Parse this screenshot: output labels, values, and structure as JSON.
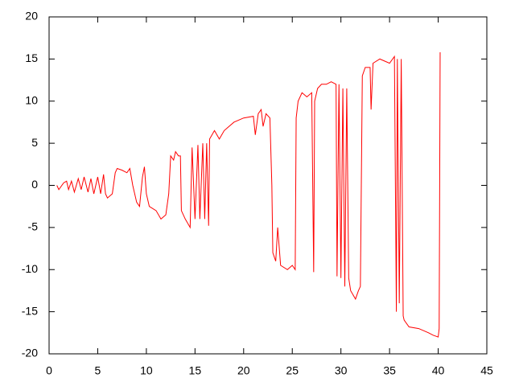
{
  "chart_data": {
    "type": "line",
    "color": "#ff0000",
    "xlim": [
      0,
      45
    ],
    "xticks": [
      0,
      5,
      10,
      15,
      20,
      25,
      30,
      35,
      40,
      45
    ],
    "ylim": [
      -20,
      20
    ],
    "yticks": [
      -20,
      -15,
      -10,
      -5,
      0,
      5,
      10,
      15,
      20
    ],
    "x": [
      0.8,
      1,
      1.5,
      1.8,
      2,
      2.3,
      2.6,
      3,
      3.3,
      3.6,
      4,
      4.3,
      4.6,
      5,
      5.3,
      5.6,
      5.8,
      6,
      6.5,
      6.8,
      7,
      7.5,
      8,
      8.3,
      8.6,
      9,
      9.3,
      9.6,
      9.8,
      10,
      10.3,
      11,
      11.5,
      12,
      12.3,
      12.5,
      12.8,
      13,
      13.3,
      13.5,
      13.6,
      14,
      14.5,
      14.7,
      15,
      15.3,
      15.5,
      15.8,
      16,
      16.2,
      16.4,
      16.5,
      17,
      17.5,
      18,
      19,
      20,
      21,
      21.2,
      21.5,
      21.8,
      22,
      22.3,
      22.7,
      22.9,
      23,
      23.3,
      23.5,
      23.8,
      24.5,
      25,
      25.3,
      25.4,
      25.6,
      26,
      26.5,
      27,
      27.2,
      27.3,
      27.6,
      28,
      28.5,
      29,
      29.5,
      29.6,
      29.8,
      30,
      30.2,
      30.4,
      30.6,
      30.8,
      31,
      31.5,
      31.8,
      32,
      32.2,
      32.5,
      33,
      33.1,
      33.3,
      34,
      35,
      35.5,
      35.7,
      35.8,
      36,
      36.2,
      36.4,
      36.5,
      37,
      38,
      39,
      39.5,
      40,
      40.1,
      40.2
    ],
    "values": [
      0,
      -0.5,
      0.3,
      0.5,
      -0.5,
      0.5,
      -0.8,
      0.8,
      -0.5,
      1,
      -0.8,
      0.8,
      -1,
      1,
      -1,
      1.3,
      -1,
      -1.5,
      -1,
      1.5,
      2,
      1.8,
      1.5,
      2,
      0,
      -2,
      -2.5,
      1,
      2.2,
      -1,
      -2.5,
      -3,
      -4,
      -3.5,
      -1,
      3.5,
      3,
      4,
      3.5,
      3.5,
      -3,
      -4,
      -5,
      4.5,
      -4,
      4.8,
      -4,
      5,
      -4,
      5,
      -4.8,
      5.5,
      6.5,
      5.5,
      6.5,
      7.5,
      8,
      8.2,
      6,
      8.5,
      9,
      7,
      8.5,
      8,
      0,
      -8,
      -9,
      -5,
      -9.5,
      -10,
      -9.5,
      -10,
      8,
      10,
      11,
      10.5,
      11,
      -10.3,
      10,
      11.5,
      12,
      12,
      12.3,
      12,
      -10.8,
      12,
      -11,
      11.5,
      -12,
      11.5,
      -11,
      -12.5,
      -13.5,
      -12.5,
      -12,
      13,
      14,
      14,
      9,
      14.5,
      15,
      14.5,
      15.3,
      -15,
      15,
      -14,
      15,
      -15.5,
      -16,
      -16.8,
      -17,
      -17.5,
      -17.8,
      -18,
      -17,
      15.8
    ]
  }
}
